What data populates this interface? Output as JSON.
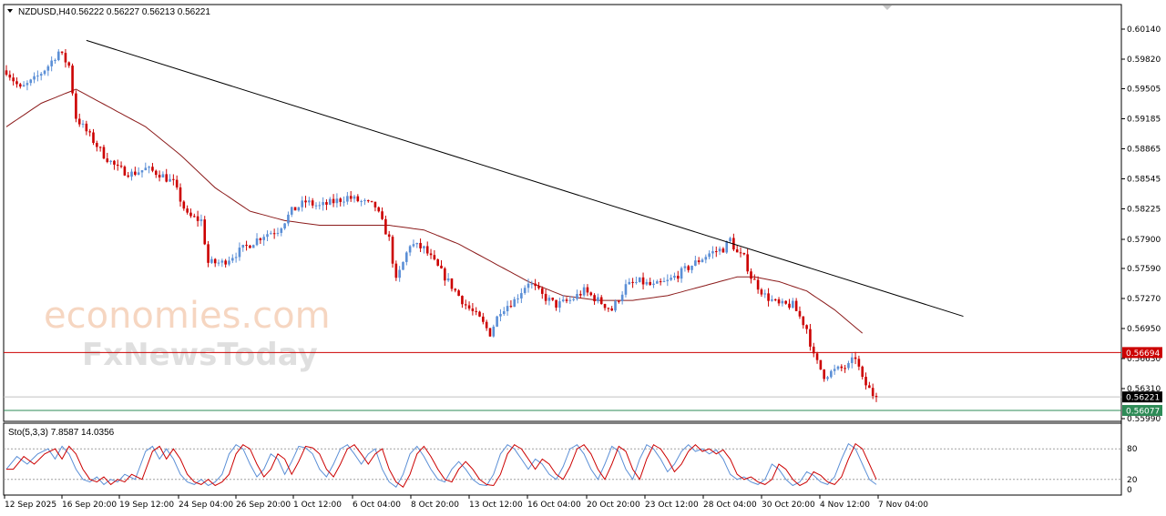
{
  "header": {
    "symbol": "NZDUSD,H4",
    "ohlc": "0.56222 0.56227 0.56213 0.56221"
  },
  "watermark": {
    "line1": "economies.com",
    "line2": "FxNewsToday"
  },
  "indicator": {
    "label": "Sto(5,3,3) 7.8587 14.0356",
    "levels": [
      "80",
      "20",
      "0"
    ],
    "main_color": "#5b8fd6",
    "signal_color": "#cc0000"
  },
  "colors": {
    "bull": "#5b8fd6",
    "bear": "#cc0000",
    "ma": "#8b1a1a",
    "trend": "#000000",
    "support": "#cc0000",
    "lower": "#2e8b57",
    "current": "#000000"
  },
  "chart_data": {
    "type": "candlestick",
    "y_range": [
      0.5599,
      0.6014
    ],
    "y_ticks": [
      "0.60140",
      "0.59820",
      "0.59505",
      "0.59185",
      "0.58865",
      "0.58545",
      "0.58225",
      "0.57900",
      "0.57590",
      "0.57270",
      "0.56950",
      "0.56630",
      "0.56310",
      "0.55990"
    ],
    "x_ticks": [
      "12 Sep 2025",
      "16 Sep 20:00",
      "19 Sep 12:00",
      "24 Sep 04:00",
      "26 Sep 20:00",
      "1 Oct 12:00",
      "6 Oct 04:00",
      "8 Oct 20:00",
      "13 Oct 12:00",
      "16 Oct 04:00",
      "20 Oct 20:00",
      "23 Oct 12:00",
      "28 Oct 04:00",
      "30 Oct 20:00",
      "4 Nov 12:00",
      "7 Nov 04:00"
    ],
    "price_anchors": [
      [
        0,
        0.597
      ],
      [
        4,
        0.595
      ],
      [
        8,
        0.596
      ],
      [
        12,
        0.5975
      ],
      [
        15,
        0.599
      ],
      [
        18,
        0.5975
      ],
      [
        20,
        0.592
      ],
      [
        24,
        0.59
      ],
      [
        28,
        0.588
      ],
      [
        32,
        0.5865
      ],
      [
        36,
        0.586
      ],
      [
        40,
        0.5865
      ],
      [
        44,
        0.586
      ],
      [
        48,
        0.585
      ],
      [
        52,
        0.5815
      ],
      [
        56,
        0.581
      ],
      [
        58,
        0.5765
      ],
      [
        62,
        0.5765
      ],
      [
        66,
        0.5775
      ],
      [
        70,
        0.5785
      ],
      [
        74,
        0.5795
      ],
      [
        78,
        0.58
      ],
      [
        82,
        0.582
      ],
      [
        86,
        0.583
      ],
      [
        90,
        0.5825
      ],
      [
        94,
        0.583
      ],
      [
        98,
        0.5835
      ],
      [
        102,
        0.583
      ],
      [
        106,
        0.5825
      ],
      [
        110,
        0.579
      ],
      [
        112,
        0.5745
      ],
      [
        116,
        0.5785
      ],
      [
        120,
        0.578
      ],
      [
        124,
        0.576
      ],
      [
        128,
        0.574
      ],
      [
        132,
        0.572
      ],
      [
        136,
        0.5705
      ],
      [
        139,
        0.569
      ],
      [
        142,
        0.5715
      ],
      [
        146,
        0.5725
      ],
      [
        150,
        0.5745
      ],
      [
        154,
        0.573
      ],
      [
        158,
        0.572
      ],
      [
        162,
        0.5725
      ],
      [
        166,
        0.5735
      ],
      [
        170,
        0.5725
      ],
      [
        174,
        0.5715
      ],
      [
        178,
        0.574
      ],
      [
        182,
        0.5745
      ],
      [
        186,
        0.574
      ],
      [
        190,
        0.5745
      ],
      [
        194,
        0.5755
      ],
      [
        198,
        0.5765
      ],
      [
        202,
        0.5775
      ],
      [
        206,
        0.578
      ],
      [
        208,
        0.579
      ],
      [
        210,
        0.5775
      ],
      [
        212,
        0.577
      ],
      [
        214,
        0.575
      ],
      [
        218,
        0.573
      ],
      [
        222,
        0.572
      ],
      [
        226,
        0.572
      ],
      [
        230,
        0.5695
      ],
      [
        232,
        0.5665
      ],
      [
        235,
        0.5645
      ],
      [
        238,
        0.565
      ],
      [
        242,
        0.5655
      ],
      [
        244,
        0.5665
      ],
      [
        246,
        0.564
      ],
      [
        249,
        0.5625
      ],
      [
        250,
        0.56221
      ]
    ],
    "moving_average_anchors": [
      [
        0,
        0.591
      ],
      [
        10,
        0.5935
      ],
      [
        20,
        0.595
      ],
      [
        30,
        0.593
      ],
      [
        40,
        0.591
      ],
      [
        50,
        0.588
      ],
      [
        60,
        0.5845
      ],
      [
        70,
        0.582
      ],
      [
        80,
        0.581
      ],
      [
        90,
        0.5805
      ],
      [
        100,
        0.5805
      ],
      [
        110,
        0.5805
      ],
      [
        120,
        0.58
      ],
      [
        130,
        0.5785
      ],
      [
        140,
        0.5765
      ],
      [
        150,
        0.5745
      ],
      [
        160,
        0.573
      ],
      [
        170,
        0.5725
      ],
      [
        180,
        0.5725
      ],
      [
        190,
        0.573
      ],
      [
        200,
        0.574
      ],
      [
        210,
        0.575
      ],
      [
        215,
        0.575
      ],
      [
        222,
        0.5745
      ],
      [
        230,
        0.5735
      ],
      [
        238,
        0.5715
      ],
      [
        246,
        0.569
      ]
    ],
    "candle_count": 251,
    "trendline": {
      "from": [
        23,
        0.6002
      ],
      "to": [
        275,
        0.5708
      ]
    },
    "levels": {
      "support": 0.56694,
      "current": 0.56221,
      "lower": 0.56077
    },
    "level_tags": {
      "support": "0.56694",
      "current": "0.56221",
      "lower": "0.56077"
    },
    "stochastic_anchors": [
      [
        0,
        40
      ],
      [
        3,
        65
      ],
      [
        6,
        50
      ],
      [
        9,
        70
      ],
      [
        12,
        80
      ],
      [
        14,
        60
      ],
      [
        16,
        85
      ],
      [
        18,
        70
      ],
      [
        20,
        40
      ],
      [
        22,
        20
      ],
      [
        24,
        15
      ],
      [
        26,
        25
      ],
      [
        28,
        10
      ],
      [
        30,
        20
      ],
      [
        32,
        15
      ],
      [
        34,
        30
      ],
      [
        37,
        20
      ],
      [
        40,
        75
      ],
      [
        42,
        85
      ],
      [
        44,
        60
      ],
      [
        46,
        80
      ],
      [
        48,
        60
      ],
      [
        50,
        30
      ],
      [
        52,
        15
      ],
      [
        54,
        10
      ],
      [
        56,
        20
      ],
      [
        58,
        8
      ],
      [
        60,
        15
      ],
      [
        62,
        30
      ],
      [
        64,
        70
      ],
      [
        66,
        88
      ],
      [
        68,
        80
      ],
      [
        70,
        50
      ],
      [
        72,
        25
      ],
      [
        74,
        40
      ],
      [
        76,
        70
      ],
      [
        78,
        60
      ],
      [
        80,
        30
      ],
      [
        82,
        55
      ],
      [
        84,
        85
      ],
      [
        86,
        82
      ],
      [
        88,
        70
      ],
      [
        90,
        40
      ],
      [
        92,
        25
      ],
      [
        94,
        50
      ],
      [
        96,
        80
      ],
      [
        98,
        88
      ],
      [
        100,
        70
      ],
      [
        102,
        50
      ],
      [
        104,
        70
      ],
      [
        106,
        80
      ],
      [
        108,
        40
      ],
      [
        110,
        15
      ],
      [
        112,
        5
      ],
      [
        114,
        30
      ],
      [
        116,
        70
      ],
      [
        118,
        85
      ],
      [
        120,
        65
      ],
      [
        122,
        40
      ],
      [
        124,
        20
      ],
      [
        126,
        15
      ],
      [
        128,
        40
      ],
      [
        130,
        55
      ],
      [
        132,
        40
      ],
      [
        134,
        20
      ],
      [
        136,
        10
      ],
      [
        138,
        8
      ],
      [
        140,
        30
      ],
      [
        142,
        70
      ],
      [
        144,
        88
      ],
      [
        146,
        80
      ],
      [
        148,
        60
      ],
      [
        150,
        40
      ],
      [
        152,
        60
      ],
      [
        154,
        50
      ],
      [
        156,
        30
      ],
      [
        158,
        20
      ],
      [
        160,
        45
      ],
      [
        162,
        80
      ],
      [
        164,
        88
      ],
      [
        166,
        70
      ],
      [
        168,
        40
      ],
      [
        170,
        20
      ],
      [
        172,
        50
      ],
      [
        174,
        85
      ],
      [
        176,
        75
      ],
      [
        178,
        40
      ],
      [
        180,
        20
      ],
      [
        182,
        60
      ],
      [
        184,
        88
      ],
      [
        186,
        80
      ],
      [
        188,
        60
      ],
      [
        190,
        35
      ],
      [
        192,
        50
      ],
      [
        194,
        75
      ],
      [
        196,
        88
      ],
      [
        198,
        75
      ],
      [
        200,
        80
      ],
      [
        202,
        70
      ],
      [
        204,
        78
      ],
      [
        206,
        60
      ],
      [
        208,
        30
      ],
      [
        210,
        20
      ],
      [
        212,
        25
      ],
      [
        214,
        15
      ],
      [
        216,
        10
      ],
      [
        218,
        20
      ],
      [
        220,
        50
      ],
      [
        222,
        40
      ],
      [
        224,
        20
      ],
      [
        226,
        8
      ],
      [
        228,
        15
      ],
      [
        230,
        35
      ],
      [
        232,
        28
      ],
      [
        234,
        15
      ],
      [
        236,
        10
      ],
      [
        238,
        25
      ],
      [
        240,
        60
      ],
      [
        242,
        90
      ],
      [
        244,
        80
      ],
      [
        246,
        50
      ],
      [
        248,
        20
      ],
      [
        250,
        10
      ]
    ]
  }
}
